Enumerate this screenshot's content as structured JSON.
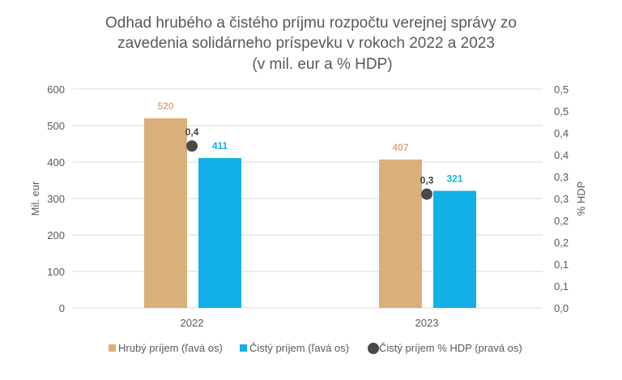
{
  "chart_data": {
    "type": "bar",
    "title_lines": [
      "Odhad hrubého a čistého príjmu rozpočtu verejnej správy zo",
      "zavedenia solidárneho príspevku v rokoch 2022 a 2023",
      "(v mil. eur a % HDP)"
    ],
    "categories": [
      "2022",
      "2023"
    ],
    "ylabel": "Mil. eur",
    "y2label": "% HDP",
    "ylim": [
      0,
      600
    ],
    "y2lim": [
      0,
      0.5
    ],
    "yticks": [
      "0",
      "100",
      "200",
      "300",
      "400",
      "500",
      "600"
    ],
    "y2ticks": [
      "0,0",
      "0,1",
      "0,1",
      "0,2",
      "0,2",
      "0,3",
      "0,3",
      "0,4",
      "0,4",
      "0,5",
      "0,5"
    ],
    "grid": true,
    "legend_position": "bottom",
    "series": [
      {
        "name": "Hrubý príjem (ľavá os)",
        "type": "bar",
        "axis": "left",
        "color": "#d9b07a",
        "values": [
          520,
          407
        ],
        "labels": [
          "520",
          "407"
        ]
      },
      {
        "name": "Čistý príjem (ľavá os)",
        "type": "bar",
        "axis": "left",
        "color": "#12b0e6",
        "values": [
          411,
          321
        ],
        "labels": [
          "411",
          "321"
        ]
      },
      {
        "name": "Čistý príjem % HDP (pravá os)",
        "type": "scatter",
        "axis": "right",
        "color": "#4a4a4a",
        "values": [
          0.37,
          0.26
        ],
        "labels": [
          "0,4",
          "0,3"
        ]
      }
    ]
  }
}
